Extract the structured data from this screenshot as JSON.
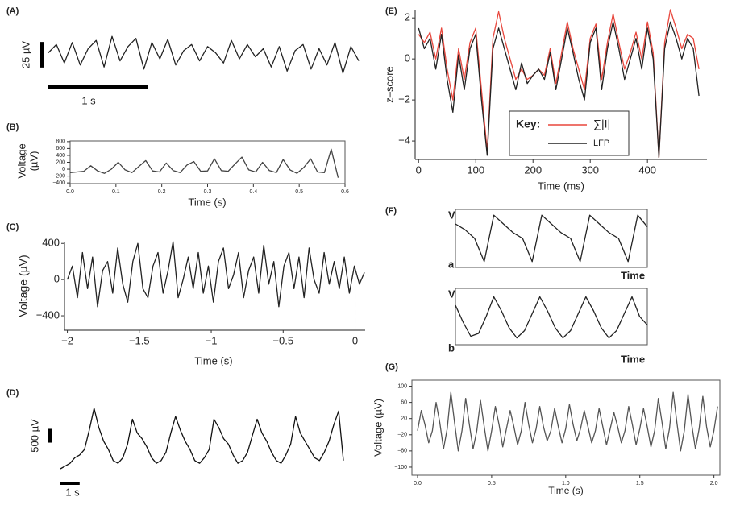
{
  "chart_data": [
    {
      "type": "line",
      "label": "(A)",
      "color": "#222222",
      "xlim": [
        0,
        3.2
      ],
      "ylim": [
        -26,
        26
      ],
      "scalebars": [
        {
          "axis": "y",
          "value": 25,
          "label": "25 µV"
        },
        {
          "axis": "x",
          "value": 1,
          "label": "1 s"
        }
      ],
      "x": [
        0,
        0.08,
        0.16,
        0.24,
        0.32,
        0.4,
        0.48,
        0.56,
        0.64,
        0.72,
        0.8,
        0.88,
        0.96,
        1.04,
        1.12,
        1.2,
        1.28,
        1.36,
        1.44,
        1.52,
        1.6,
        1.68,
        1.76,
        1.84,
        1.92,
        2,
        2.08,
        2.16,
        2.24,
        2.32,
        2.4,
        2.48,
        2.56,
        2.64,
        2.72,
        2.8,
        2.88,
        2.96,
        3.04,
        3.12
      ],
      "values": [
        2,
        10,
        -8,
        12,
        -10,
        6,
        14,
        -12,
        18,
        -6,
        8,
        16,
        -14,
        12,
        -4,
        15,
        -10,
        4,
        10,
        -6,
        8,
        2,
        -8,
        14,
        -4,
        10,
        -2,
        6,
        -12,
        8,
        -16,
        4,
        10,
        -14,
        6,
        -10,
        12,
        -18,
        8,
        -6
      ]
    },
    {
      "type": "line",
      "label": "(B)",
      "color": "#444444",
      "frame": "box",
      "xlabel": "Time (s)",
      "ylabel": [
        "Voltage",
        "(µV)"
      ],
      "xlim": [
        0,
        0.6
      ],
      "ylim": [
        -420,
        820
      ],
      "xticks": [
        {
          "value": 0,
          "label": "0.0"
        },
        0.1,
        0.2,
        0.3,
        0.4,
        0.5,
        0.6
      ],
      "yticks": [
        800,
        600,
        400,
        200,
        0,
        {
          "value": -200,
          "label": "−200"
        },
        {
          "value": -400,
          "label": "−400"
        }
      ],
      "x": [
        0,
        0.015,
        0.03,
        0.045,
        0.06,
        0.075,
        0.09,
        0.105,
        0.12,
        0.135,
        0.15,
        0.165,
        0.18,
        0.195,
        0.21,
        0.225,
        0.24,
        0.255,
        0.27,
        0.285,
        0.3,
        0.315,
        0.33,
        0.345,
        0.36,
        0.375,
        0.39,
        0.405,
        0.42,
        0.435,
        0.45,
        0.465,
        0.48,
        0.495,
        0.51,
        0.525,
        0.54,
        0.555,
        0.57,
        0.585
      ],
      "values": [
        -100,
        -80,
        -60,
        100,
        -50,
        -120,
        0,
        200,
        -20,
        -100,
        80,
        250,
        -50,
        -80,
        180,
        -40,
        -100,
        120,
        220,
        -60,
        -50,
        300,
        -40,
        -60,
        150,
        350,
        -20,
        -80,
        200,
        -40,
        -100,
        280,
        -20,
        -120,
        50,
        300,
        -80,
        -100,
        580,
        -250
      ]
    },
    {
      "type": "line",
      "label": "(C)",
      "color": "#222222",
      "frame": "open",
      "xlabel": "Time (s)",
      "ylabel": "Voltage (µV)",
      "xlim": [
        -2.02,
        0.07
      ],
      "ylim": [
        -560,
        420
      ],
      "vline": 0,
      "xticks": [
        {
          "value": -2,
          "label": "−2"
        },
        {
          "value": -1.5,
          "label": "−1.5"
        },
        {
          "value": -1,
          "label": "−1"
        },
        {
          "value": -0.5,
          "label": "−0.5"
        },
        0
      ],
      "yticks": [
        400,
        0,
        {
          "value": -400,
          "label": "−400"
        }
      ],
      "x": [
        -2,
        -1.965,
        -1.93,
        -1.895,
        -1.86,
        -1.825,
        -1.79,
        -1.755,
        -1.72,
        -1.685,
        -1.65,
        -1.615,
        -1.58,
        -1.545,
        -1.51,
        -1.475,
        -1.44,
        -1.405,
        -1.37,
        -1.335,
        -1.3,
        -1.265,
        -1.23,
        -1.195,
        -1.16,
        -1.125,
        -1.09,
        -1.055,
        -1.02,
        -0.985,
        -0.95,
        -0.915,
        -0.88,
        -0.845,
        -0.81,
        -0.775,
        -0.74,
        -0.705,
        -0.67,
        -0.635,
        -0.6,
        -0.565,
        -0.53,
        -0.495,
        -0.46,
        -0.425,
        -0.39,
        -0.355,
        -0.32,
        -0.285,
        -0.25,
        -0.215,
        -0.18,
        -0.145,
        -0.11,
        -0.075,
        -0.04,
        -0.005,
        0.03,
        0.065
      ],
      "values": [
        0,
        150,
        -200,
        300,
        -100,
        250,
        -300,
        100,
        200,
        -150,
        350,
        -50,
        -250,
        200,
        400,
        -100,
        -200,
        150,
        300,
        -150,
        100,
        420,
        -200,
        0,
        250,
        -100,
        300,
        -150,
        150,
        -250,
        200,
        350,
        -100,
        50,
        300,
        -200,
        100,
        250,
        -150,
        380,
        -50,
        200,
        -300,
        150,
        300,
        -100,
        250,
        -200,
        350,
        0,
        -150,
        300,
        -50,
        200,
        -100,
        250,
        -150,
        150,
        -50,
        80
      ]
    },
    {
      "type": "line",
      "label": "(D)",
      "color": "#111111",
      "xlim": [
        0,
        15
      ],
      "ylim": [
        0,
        2400
      ],
      "scalebars": [
        {
          "axis": "y",
          "value": 500,
          "label": "500 µV"
        },
        {
          "axis": "x",
          "value": 1,
          "label": "1 s"
        }
      ],
      "x": [
        0,
        0.25,
        0.5,
        0.75,
        1,
        1.25,
        1.5,
        1.75,
        2,
        2.25,
        2.5,
        2.75,
        3,
        3.25,
        3.5,
        3.75,
        4,
        4.25,
        4.5,
        4.75,
        5,
        5.25,
        5.5,
        5.75,
        6,
        6.25,
        6.5,
        6.75,
        7,
        7.25,
        7.5,
        7.75,
        8,
        8.25,
        8.5,
        8.75,
        9,
        9.25,
        9.5,
        9.75,
        10,
        10.25,
        10.5,
        10.75,
        11,
        11.25,
        11.5,
        11.75,
        12,
        12.25,
        12.5,
        12.75,
        13,
        13.25,
        13.5,
        13.75,
        14,
        14.25,
        14.5,
        14.75
      ],
      "values": [
        0,
        100,
        200,
        400,
        500,
        700,
        1400,
        2200,
        1500,
        1000,
        700,
        300,
        200,
        400,
        900,
        1800,
        1300,
        1100,
        800,
        400,
        200,
        300,
        600,
        1300,
        1900,
        1400,
        1000,
        700,
        300,
        200,
        400,
        700,
        1800,
        1500,
        1100,
        900,
        500,
        200,
        300,
        600,
        1200,
        1800,
        1300,
        1000,
        600,
        300,
        200,
        500,
        900,
        1900,
        1300,
        1000,
        700,
        400,
        300,
        600,
        1000,
        1600,
        2100,
        300
      ]
    },
    {
      "type": "line",
      "label": "(E)",
      "frame": "open",
      "xlabel": "Time (ms)",
      "ylabel": "z–score",
      "legend_title": "Key:",
      "xlim": [
        -6,
        504
      ],
      "ylim": [
        -4.9,
        2.4
      ],
      "xticks": [
        0,
        100,
        200,
        300,
        400
      ],
      "yticks": [
        2,
        0,
        {
          "value": -2,
          "label": "−2"
        },
        {
          "value": -4,
          "label": "−4"
        }
      ],
      "x": [
        0,
        10,
        20,
        30,
        40,
        50,
        60,
        70,
        80,
        90,
        100,
        110,
        120,
        130,
        140,
        150,
        160,
        170,
        180,
        190,
        200,
        210,
        220,
        230,
        240,
        250,
        260,
        270,
        280,
        290,
        300,
        310,
        320,
        330,
        340,
        350,
        360,
        370,
        380,
        390,
        400,
        410,
        420,
        430,
        440,
        450,
        460,
        470,
        480,
        490
      ],
      "series": [
        {
          "name": "∑|I|",
          "color": "#e8463c",
          "values": [
            1.2,
            0.8,
            1.3,
            0,
            1.5,
            -0.5,
            -2,
            0.5,
            -1,
            0.8,
            1.5,
            -1.5,
            -4.5,
            1,
            2.3,
            1,
            0,
            -1,
            -0.5,
            -1,
            -0.8,
            -0.5,
            -0.8,
            0.5,
            -1.2,
            0.3,
            1.8,
            0.5,
            -0.5,
            -1.5,
            1,
            1.7,
            -1,
            0.8,
            2.2,
            0.8,
            -0.5,
            0.3,
            1.3,
            0,
            1.8,
            0.3,
            -4.8,
            0.8,
            2.4,
            1.5,
            0.5,
            1.2,
            1,
            -0.5
          ]
        },
        {
          "name": "LFP",
          "color": "#222222",
          "values": [
            1.5,
            0.5,
            1,
            -0.5,
            1.2,
            -1,
            -2.6,
            0.2,
            -1.5,
            0.5,
            1.2,
            -2,
            -4.7,
            0.5,
            1.5,
            0.5,
            -0.5,
            -1.5,
            -0.2,
            -1.2,
            -0.8,
            -0.5,
            -1,
            0.3,
            -1.5,
            0,
            1.5,
            0.3,
            -1,
            -2,
            0.8,
            1.5,
            -1.5,
            0.5,
            1.8,
            0.5,
            -1,
            0,
            1,
            -0.5,
            1.5,
            0,
            -4.8,
            0.5,
            1.8,
            1,
            0,
            1,
            0.5,
            -1.8
          ]
        }
      ]
    },
    {
      "type": "line",
      "label": "(F)",
      "tag": "a",
      "ylabel": "V",
      "xlabel": "Time",
      "frame": "box",
      "color": "#222222",
      "xlim": [
        0,
        5
      ],
      "ylim": [
        0,
        1
      ],
      "x": [
        0,
        0.25,
        0.5,
        0.75,
        1,
        1.25,
        1.5,
        1.75,
        2,
        2.25,
        2.5,
        2.75,
        3,
        3.25,
        3.5,
        3.75,
        4,
        4.25,
        4.5,
        4.75,
        5
      ],
      "values": [
        0.75,
        0.65,
        0.5,
        0.1,
        0.9,
        0.75,
        0.6,
        0.5,
        0.1,
        0.9,
        0.75,
        0.6,
        0.5,
        0.1,
        0.9,
        0.75,
        0.6,
        0.5,
        0.1,
        0.9,
        0.7
      ]
    },
    {
      "type": "line",
      "tag": "b",
      "ylabel": "V",
      "xlabel": "Time",
      "frame": "box",
      "color": "#222222",
      "xlim": [
        0,
        5
      ],
      "ylim": [
        0,
        1
      ],
      "x": [
        0,
        0.2,
        0.4,
        0.6,
        0.8,
        1,
        1.2,
        1.4,
        1.6,
        1.8,
        2,
        2.2,
        2.4,
        2.6,
        2.8,
        3,
        3.2,
        3.4,
        3.6,
        3.8,
        4,
        4.2,
        4.4,
        4.6,
        4.8,
        5
      ],
      "values": [
        0.7,
        0.4,
        0.15,
        0.2,
        0.5,
        0.85,
        0.6,
        0.3,
        0.12,
        0.25,
        0.55,
        0.85,
        0.6,
        0.3,
        0.12,
        0.25,
        0.55,
        0.85,
        0.6,
        0.3,
        0.12,
        0.25,
        0.55,
        0.85,
        0.5,
        0.35
      ]
    },
    {
      "type": "line",
      "label": "(G)",
      "color": "#555555",
      "frame": "box",
      "xlabel": "Time (s)",
      "ylabel": "Voltage (µV)",
      "xlim": [
        -0.038,
        2.04
      ],
      "ylim": [
        -120,
        115
      ],
      "xticks": [
        {
          "value": 0,
          "label": "0.0"
        },
        0.5,
        {
          "value": 1,
          "label": "1.0"
        },
        1.5,
        {
          "value": 2,
          "label": "2.0"
        }
      ],
      "yticks": [
        100,
        60,
        20,
        {
          "value": -20,
          "label": "−20"
        },
        {
          "value": -60,
          "label": "−60"
        },
        {
          "value": -100,
          "label": "−100"
        }
      ],
      "x": [
        0,
        0.025,
        0.05,
        0.075,
        0.1,
        0.125,
        0.15,
        0.175,
        0.2,
        0.225,
        0.25,
        0.275,
        0.3,
        0.325,
        0.35,
        0.375,
        0.4,
        0.425,
        0.45,
        0.475,
        0.5,
        0.525,
        0.55,
        0.575,
        0.6,
        0.625,
        0.65,
        0.675,
        0.7,
        0.725,
        0.75,
        0.775,
        0.8,
        0.825,
        0.85,
        0.875,
        0.9,
        0.925,
        0.95,
        0.975,
        1,
        1.025,
        1.05,
        1.075,
        1.1,
        1.125,
        1.15,
        1.175,
        1.2,
        1.225,
        1.25,
        1.275,
        1.3,
        1.325,
        1.35,
        1.375,
        1.4,
        1.425,
        1.45,
        1.475,
        1.5,
        1.525,
        1.55,
        1.575,
        1.6,
        1.625,
        1.65,
        1.675,
        1.7,
        1.725,
        1.75,
        1.775,
        1.8,
        1.825,
        1.85,
        1.875,
        1.9,
        1.925,
        1.95,
        1.975,
        2,
        2.025
      ],
      "values": [
        -10,
        40,
        5,
        -40,
        -10,
        60,
        10,
        -55,
        -5,
        85,
        10,
        -60,
        -10,
        70,
        5,
        -55,
        -10,
        65,
        0,
        -60,
        -10,
        50,
        5,
        -50,
        -5,
        40,
        0,
        -45,
        -10,
        60,
        5,
        -40,
        -5,
        50,
        0,
        -35,
        -10,
        45,
        0,
        -40,
        -5,
        55,
        5,
        -35,
        -5,
        40,
        0,
        -40,
        -10,
        45,
        0,
        -45,
        -5,
        35,
        0,
        -40,
        -10,
        50,
        5,
        -45,
        -5,
        45,
        0,
        -50,
        -10,
        70,
        10,
        -55,
        -5,
        85,
        10,
        -60,
        -10,
        80,
        5,
        -55,
        -5,
        75,
        0,
        -50,
        -10,
        50
      ]
    }
  ]
}
